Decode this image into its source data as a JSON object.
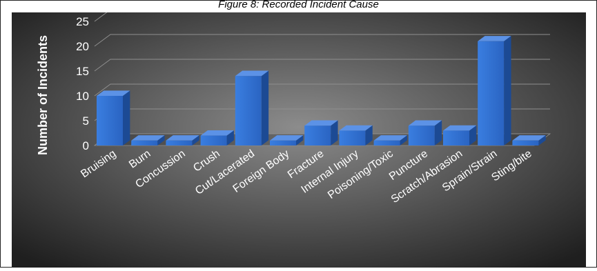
{
  "caption": "Figure 8: Recorded Incident Cause",
  "chart_data": {
    "type": "bar",
    "title": "",
    "xlabel": "",
    "ylabel": "Number of Incidents",
    "categories": [
      "Bruising",
      "Burn",
      "Concussion",
      "Crush",
      "Cut/Lacerated",
      "Foreign Body",
      "Fracture",
      "Internal Injury",
      "Poisoning/Toxic",
      "Puncture",
      "Scratch/Abrasion",
      "Sprain/Strain",
      "Sting/bite"
    ],
    "values": [
      10,
      1,
      1,
      2,
      14,
      1,
      4,
      3,
      1,
      4,
      3,
      21,
      1
    ],
    "ylim": [
      0,
      25
    ],
    "yticks": [
      0,
      5,
      10,
      15,
      20,
      25
    ],
    "grid": true,
    "legend": "none",
    "three_d": true,
    "colors": {
      "bar_front": "#2e6fd1",
      "bar_side": "#1c4a94",
      "bar_top": "#5c92e6",
      "background_center": "#8c8c8c",
      "background_edge": "#1f1f1f",
      "text": "#ffffff",
      "grid": "#8f8f8f"
    }
  }
}
